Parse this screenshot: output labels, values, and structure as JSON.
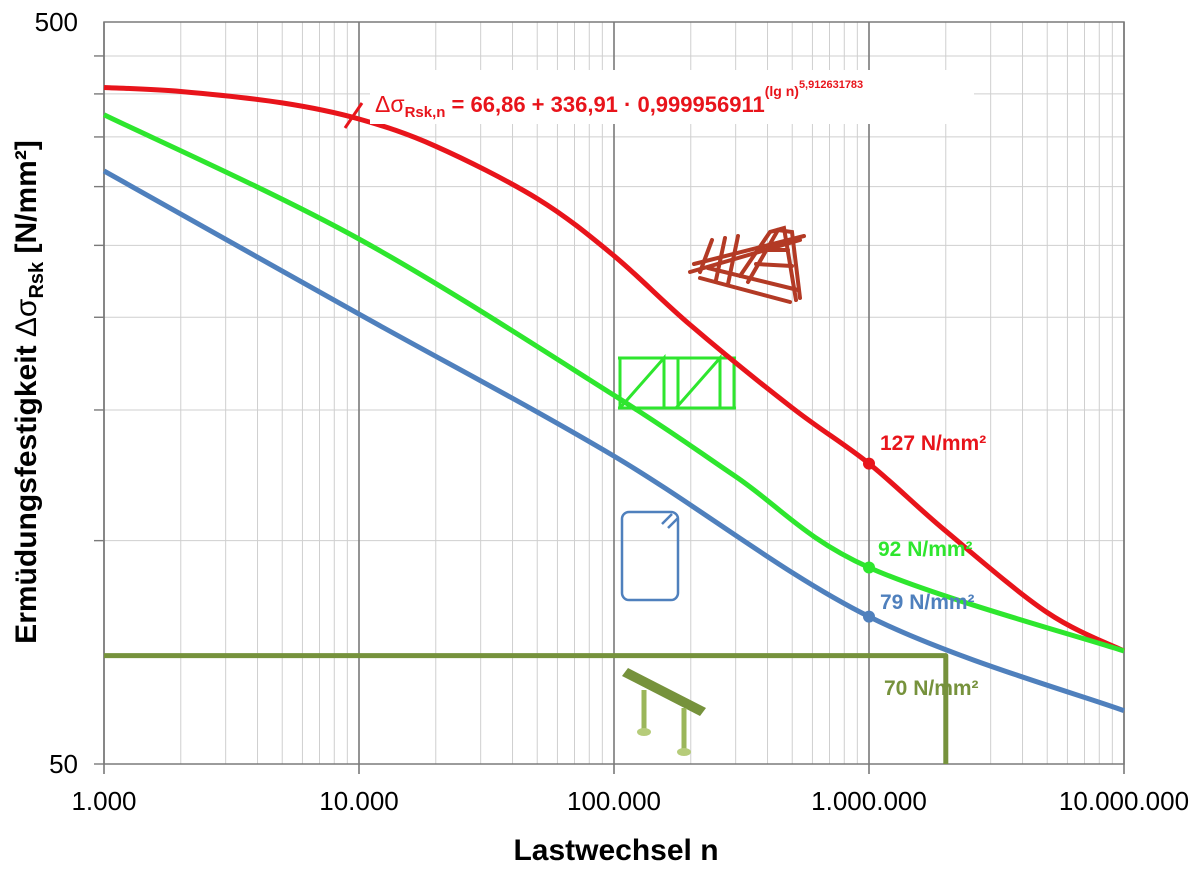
{
  "chart_data": {
    "type": "line",
    "xscale": "log",
    "yscale": "log",
    "xlim": [
      1000,
      10000000
    ],
    "ylim": [
      50,
      500
    ],
    "xticks": [
      1000,
      10000,
      100000,
      1000000,
      10000000
    ],
    "xtick_labels": [
      "1.000",
      "10.000",
      "100.000",
      "1.000.000",
      "10.000.000"
    ],
    "yticks": [
      50,
      500
    ],
    "ytick_labels": [
      "50",
      "500"
    ],
    "grid": true,
    "xlabel": "Lastwechsel n",
    "ylabel": {
      "main": "Ermüdungsfestigkeit ",
      "sym": "Δσ",
      "sub": "Rsk",
      "unit": " [N/mm²]"
    },
    "colors": {
      "red": "#e8141b",
      "green": "#2ee62e",
      "blue": "#4f80bd",
      "olive": "#76923c"
    },
    "series": [
      {
        "color": "red",
        "x": [
          1000,
          2000,
          5000,
          10000,
          20000,
          50000,
          100000,
          200000,
          500000,
          1000000,
          2000000,
          5000000,
          10000000
        ],
        "y": [
          408,
          403,
          389,
          370,
          340,
          289,
          242,
          195,
          151,
          127,
          103,
          80,
          71
        ]
      },
      {
        "color": "green",
        "x": [
          1000,
          10000,
          100000,
          300000,
          1000000,
          10000000
        ],
        "y": [
          375,
          255,
          157,
          122,
          92,
          71
        ]
      },
      {
        "color": "blue",
        "x": [
          1000,
          10000,
          100000,
          1000000,
          10000000
        ],
        "y": [
          315,
          202,
          130,
          79,
          59
        ]
      },
      {
        "color": "olive",
        "x": [
          1000,
          2000000,
          2000000
        ],
        "y": [
          70,
          70,
          50
        ]
      }
    ],
    "markers": [
      {
        "x": 1000000,
        "y": 127,
        "color": "red",
        "label": "127 N/mm²"
      },
      {
        "x": 1000000,
        "y": 92,
        "color": "green",
        "label": "92 N/mm²"
      },
      {
        "x": 1000000,
        "y": 79,
        "color": "blue",
        "label": "79 N/mm²"
      }
    ],
    "annotations": [
      {
        "color": "olive",
        "label": "70 N/mm²"
      }
    ],
    "formula": {
      "sym": "Δσ",
      "sub": "Rsk,n",
      "main": " = 66,86 + 336,91 · 0,999956911",
      "sup": "(lg n)",
      "supsup": "5,912631783",
      "color": "red"
    },
    "icons": [
      "red-truss-cage-icon",
      "green-truss-girder-icon",
      "blue-rebar-stirrup-icon",
      "olive-support-beam-icon"
    ]
  }
}
